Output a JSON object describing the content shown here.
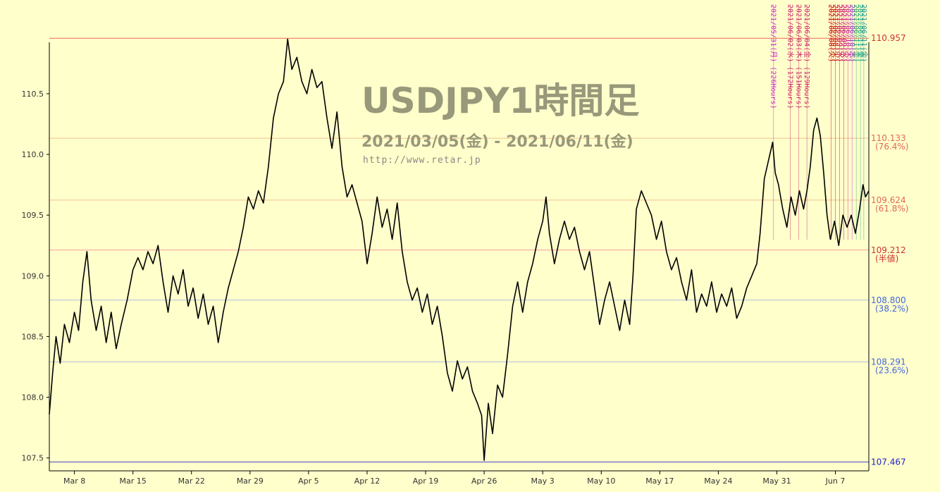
{
  "header": {
    "title": "USDJPY1時間足",
    "subtitle": "2021/03/05(金) - 2021/06/11(金)",
    "url": "http://www.retar.jp"
  },
  "colors": {
    "background": "#FFFFCC",
    "price_line": "#000000",
    "high_level": "#E86A5A",
    "fib_high": "#E8B070",
    "fib_low": "#9AB0D8",
    "low_level": "#3333CC"
  },
  "chart_data": {
    "type": "line",
    "ylim": [
      107.44,
      110.97
    ],
    "y_ticks": [
      {
        "value": 107.5,
        "label": "107.5"
      },
      {
        "value": 108.0,
        "label": "108.0"
      },
      {
        "value": 108.5,
        "label": "108.5"
      },
      {
        "value": 109.0,
        "label": "109.0"
      },
      {
        "value": 109.5,
        "label": "109.5"
      },
      {
        "value": 110.0,
        "label": "110.0"
      },
      {
        "value": 110.5,
        "label": "110.5"
      }
    ],
    "xlim": [
      0,
      98
    ],
    "x_ticks": [
      {
        "day": 3,
        "label": "Mar 8"
      },
      {
        "day": 10,
        "label": "Mar 15"
      },
      {
        "day": 17,
        "label": "Mar 22"
      },
      {
        "day": 24,
        "label": "Mar 29"
      },
      {
        "day": 31,
        "label": "Apr 5"
      },
      {
        "day": 38,
        "label": "Apr 12"
      },
      {
        "day": 45,
        "label": "Apr 19"
      },
      {
        "day": 52,
        "label": "Apr 26"
      },
      {
        "day": 59,
        "label": "May 3"
      },
      {
        "day": 66,
        "label": "May 10"
      },
      {
        "day": 73,
        "label": "May 17"
      },
      {
        "day": 80,
        "label": "May 24"
      },
      {
        "day": 87,
        "label": "May 31"
      },
      {
        "day": 94,
        "label": "Jun 7"
      }
    ],
    "levels": [
      {
        "value": 110.957,
        "label": "110.957",
        "pct": "",
        "color": "#CC3333",
        "line": "#E86A5A"
      },
      {
        "value": 110.133,
        "label": "110.133",
        "pct": "(76.4%)",
        "color": "#E06A5A",
        "line": "#F0C090"
      },
      {
        "value": 109.624,
        "label": "109.624",
        "pct": "(61.8%)",
        "color": "#E06A5A",
        "line": "#F0C090"
      },
      {
        "value": 109.212,
        "label": "109.212",
        "pct": "(半値)",
        "color": "#CC3333",
        "line": "#F0A0A0"
      },
      {
        "value": 108.8,
        "label": "108.800",
        "pct": "(38.2%)",
        "color": "#4466DD",
        "line": "#B0C0E0"
      },
      {
        "value": 108.291,
        "label": "108.291",
        "pct": "(23.6%)",
        "color": "#4466DD",
        "line": "#B0C0E0"
      },
      {
        "value": 107.467,
        "label": "107.467",
        "pct": "",
        "color": "#2222CC",
        "line": "#4444CC"
      }
    ],
    "events": [
      {
        "day": 86.6,
        "label": "2021/05/31(月) (226Hours)",
        "color": "#CC22CC"
      },
      {
        "day": 88.6,
        "label": "2021/06/02(水) (172Hours)",
        "color": "#CC2266"
      },
      {
        "day": 89.6,
        "label": "2021/06/03(木) (151Hours)",
        "color": "#CC2266"
      },
      {
        "day": 90.6,
        "label": "2021/06/04(金) (129Hours)",
        "color": "#CC2266"
      },
      {
        "day": 93.5,
        "label": "2021/06/08(火)",
        "color": "#CC0000"
      },
      {
        "day": 94.0,
        "label": "2021/06/08(火)",
        "color": "#CC0000"
      },
      {
        "day": 94.5,
        "label": "2021/06/09(水)",
        "color": "#CC0066"
      },
      {
        "day": 95.0,
        "label": "2021/06/09(水)",
        "color": "#CC0066"
      },
      {
        "day": 95.5,
        "label": "2021/06/10(木)",
        "color": "#CC2299"
      },
      {
        "day": 96.0,
        "label": "2021/06/10(木)",
        "color": "#9933CC"
      },
      {
        "day": 96.5,
        "label": "2021/06/11(金)",
        "color": "#33AA66"
      },
      {
        "day": 97.0,
        "label": "2021/06/11(金)",
        "color": "#22AA88"
      },
      {
        "day": 97.4,
        "label": "2021/06/11(金)",
        "color": "#229999"
      }
    ],
    "series": [
      {
        "points": [
          [
            0.0,
            107.86
          ],
          [
            0.4,
            108.2
          ],
          [
            0.8,
            108.5
          ],
          [
            1.3,
            108.28
          ],
          [
            1.8,
            108.6
          ],
          [
            2.4,
            108.45
          ],
          [
            3.0,
            108.7
          ],
          [
            3.5,
            108.55
          ],
          [
            4.0,
            108.95
          ],
          [
            4.5,
            109.2
          ],
          [
            5.0,
            108.8
          ],
          [
            5.6,
            108.55
          ],
          [
            6.2,
            108.75
          ],
          [
            6.8,
            108.45
          ],
          [
            7.4,
            108.7
          ],
          [
            8.0,
            108.4
          ],
          [
            8.6,
            108.6
          ],
          [
            9.3,
            108.8
          ],
          [
            10.0,
            109.05
          ],
          [
            10.6,
            109.15
          ],
          [
            11.2,
            109.05
          ],
          [
            11.8,
            109.2
          ],
          [
            12.4,
            109.1
          ],
          [
            13.0,
            109.25
          ],
          [
            13.6,
            108.95
          ],
          [
            14.2,
            108.7
          ],
          [
            14.8,
            109.0
          ],
          [
            15.4,
            108.85
          ],
          [
            16.0,
            109.05
          ],
          [
            16.6,
            108.75
          ],
          [
            17.2,
            108.9
          ],
          [
            17.8,
            108.65
          ],
          [
            18.4,
            108.85
          ],
          [
            19.0,
            108.6
          ],
          [
            19.6,
            108.75
          ],
          [
            20.2,
            108.45
          ],
          [
            20.8,
            108.7
          ],
          [
            21.4,
            108.9
          ],
          [
            22.0,
            109.05
          ],
          [
            22.6,
            109.2
          ],
          [
            23.2,
            109.4
          ],
          [
            23.8,
            109.65
          ],
          [
            24.4,
            109.55
          ],
          [
            25.0,
            109.7
          ],
          [
            25.6,
            109.6
          ],
          [
            26.2,
            109.9
          ],
          [
            26.8,
            110.3
          ],
          [
            27.4,
            110.5
          ],
          [
            28.0,
            110.6
          ],
          [
            28.5,
            110.95
          ],
          [
            29.0,
            110.7
          ],
          [
            29.6,
            110.8
          ],
          [
            30.2,
            110.6
          ],
          [
            30.8,
            110.5
          ],
          [
            31.4,
            110.7
          ],
          [
            32.0,
            110.55
          ],
          [
            32.6,
            110.6
          ],
          [
            33.2,
            110.3
          ],
          [
            33.8,
            110.05
          ],
          [
            34.4,
            110.35
          ],
          [
            35.0,
            109.9
          ],
          [
            35.6,
            109.65
          ],
          [
            36.2,
            109.75
          ],
          [
            36.8,
            109.6
          ],
          [
            37.4,
            109.45
          ],
          [
            38.0,
            109.1
          ],
          [
            38.6,
            109.35
          ],
          [
            39.2,
            109.65
          ],
          [
            39.8,
            109.4
          ],
          [
            40.4,
            109.55
          ],
          [
            41.0,
            109.3
          ],
          [
            41.6,
            109.6
          ],
          [
            42.2,
            109.2
          ],
          [
            42.8,
            108.95
          ],
          [
            43.4,
            108.8
          ],
          [
            44.0,
            108.9
          ],
          [
            44.6,
            108.7
          ],
          [
            45.2,
            108.85
          ],
          [
            45.8,
            108.6
          ],
          [
            46.4,
            108.75
          ],
          [
            47.0,
            108.5
          ],
          [
            47.6,
            108.2
          ],
          [
            48.2,
            108.05
          ],
          [
            48.8,
            108.3
          ],
          [
            49.4,
            108.15
          ],
          [
            50.0,
            108.25
          ],
          [
            50.6,
            108.05
          ],
          [
            51.2,
            107.95
          ],
          [
            51.7,
            107.85
          ],
          [
            52.0,
            107.48
          ],
          [
            52.5,
            107.95
          ],
          [
            53.0,
            107.7
          ],
          [
            53.6,
            108.1
          ],
          [
            54.2,
            108.0
          ],
          [
            54.8,
            108.35
          ],
          [
            55.4,
            108.75
          ],
          [
            56.0,
            108.95
          ],
          [
            56.6,
            108.7
          ],
          [
            57.2,
            108.95
          ],
          [
            57.8,
            109.1
          ],
          [
            58.4,
            109.3
          ],
          [
            59.0,
            109.45
          ],
          [
            59.4,
            109.65
          ],
          [
            59.8,
            109.35
          ],
          [
            60.4,
            109.1
          ],
          [
            61.0,
            109.3
          ],
          [
            61.6,
            109.45
          ],
          [
            62.2,
            109.3
          ],
          [
            62.8,
            109.4
          ],
          [
            63.4,
            109.2
          ],
          [
            64.0,
            109.05
          ],
          [
            64.6,
            109.2
          ],
          [
            65.2,
            108.9
          ],
          [
            65.8,
            108.6
          ],
          [
            66.4,
            108.8
          ],
          [
            67.0,
            108.95
          ],
          [
            67.6,
            108.75
          ],
          [
            68.2,
            108.55
          ],
          [
            68.8,
            108.8
          ],
          [
            69.4,
            108.6
          ],
          [
            69.8,
            109.0
          ],
          [
            70.2,
            109.55
          ],
          [
            70.8,
            109.7
          ],
          [
            71.4,
            109.6
          ],
          [
            72.0,
            109.5
          ],
          [
            72.6,
            109.3
          ],
          [
            73.2,
            109.45
          ],
          [
            73.8,
            109.2
          ],
          [
            74.4,
            109.05
          ],
          [
            75.0,
            109.15
          ],
          [
            75.6,
            108.95
          ],
          [
            76.2,
            108.8
          ],
          [
            76.8,
            109.05
          ],
          [
            77.4,
            108.7
          ],
          [
            78.0,
            108.85
          ],
          [
            78.6,
            108.75
          ],
          [
            79.2,
            108.95
          ],
          [
            79.8,
            108.7
          ],
          [
            80.4,
            108.85
          ],
          [
            81.0,
            108.75
          ],
          [
            81.6,
            108.9
          ],
          [
            82.2,
            108.65
          ],
          [
            82.8,
            108.75
          ],
          [
            83.4,
            108.9
          ],
          [
            84.0,
            109.0
          ],
          [
            84.6,
            109.1
          ],
          [
            85.0,
            109.35
          ],
          [
            85.5,
            109.8
          ],
          [
            86.0,
            109.95
          ],
          [
            86.5,
            110.1
          ],
          [
            86.8,
            109.85
          ],
          [
            87.2,
            109.75
          ],
          [
            87.7,
            109.55
          ],
          [
            88.2,
            109.4
          ],
          [
            88.7,
            109.65
          ],
          [
            89.2,
            109.5
          ],
          [
            89.7,
            109.7
          ],
          [
            90.2,
            109.55
          ],
          [
            90.6,
            109.7
          ],
          [
            91.0,
            109.9
          ],
          [
            91.4,
            110.2
          ],
          [
            91.8,
            110.3
          ],
          [
            92.2,
            110.15
          ],
          [
            92.6,
            109.85
          ],
          [
            93.0,
            109.5
          ],
          [
            93.4,
            109.3
          ],
          [
            93.9,
            109.45
          ],
          [
            94.4,
            109.25
          ],
          [
            94.9,
            109.5
          ],
          [
            95.4,
            109.4
          ],
          [
            95.9,
            109.5
          ],
          [
            96.4,
            109.35
          ],
          [
            96.9,
            109.55
          ],
          [
            97.3,
            109.75
          ],
          [
            97.6,
            109.65
          ],
          [
            98.0,
            109.7
          ]
        ]
      }
    ]
  }
}
